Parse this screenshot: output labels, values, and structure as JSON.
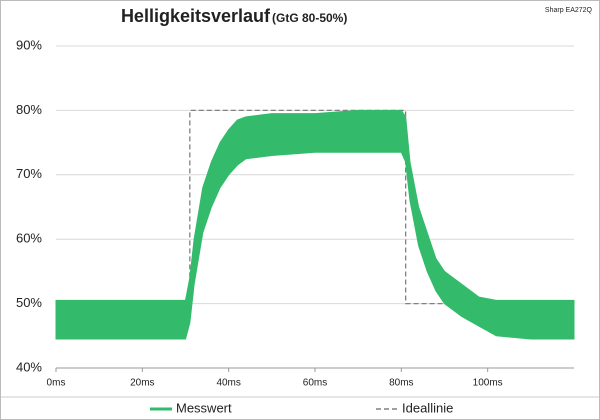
{
  "chart_data": {
    "type": "band",
    "title": "Helligkeitsverlauf",
    "subtitle": "(GtG 80-50%)",
    "annotation": "Sharp EA272Q",
    "xlim": [
      0,
      120
    ],
    "xticks": [
      {
        "value": 0,
        "label": "0ms"
      },
      {
        "value": 20,
        "label": "20ms"
      },
      {
        "value": 40,
        "label": "40ms"
      },
      {
        "value": 60,
        "label": "60ms"
      },
      {
        "value": 80,
        "label": "80ms"
      },
      {
        "value": 100,
        "label": "100ms"
      }
    ],
    "ylim": [
      40,
      90
    ],
    "yticks": [
      {
        "value": 40,
        "label": "40%"
      },
      {
        "value": 50,
        "label": "50%"
      },
      {
        "value": 60,
        "label": "60%"
      },
      {
        "value": 70,
        "label": "70%"
      },
      {
        "value": 80,
        "label": "80%"
      },
      {
        "value": 90,
        "label": "90%"
      }
    ],
    "grid": true,
    "legend": "bottom",
    "series": [
      {
        "name": "Messwert",
        "color": "#33bb6b",
        "x": [
          0,
          10,
          20,
          30,
          31,
          32,
          33,
          34,
          36,
          38,
          40,
          42,
          44,
          50,
          60,
          70,
          80,
          81,
          82,
          84,
          86,
          88,
          90,
          94,
          98,
          102,
          110,
          120
        ],
        "low": [
          44.5,
          44.5,
          44.5,
          44.5,
          47,
          53,
          57,
          61,
          65,
          68,
          70,
          71.5,
          72.5,
          73,
          73.5,
          73.5,
          73.5,
          72,
          66,
          59,
          55,
          52,
          50,
          48,
          46.5,
          45,
          44.5,
          44.5
        ],
        "high": [
          50.5,
          50.5,
          50.5,
          50.5,
          54,
          60,
          64,
          68,
          72,
          75,
          77,
          78.5,
          79,
          79.5,
          79.5,
          80,
          80,
          79,
          72,
          65,
          61,
          57,
          55,
          53,
          51,
          50.5,
          50.5,
          50.5
        ]
      },
      {
        "name": "Ideallinie",
        "color": "#808080",
        "dashed": true,
        "x": [
          0,
          31,
          31,
          81,
          81,
          120
        ],
        "values": [
          50,
          50,
          80,
          80,
          50,
          50
        ]
      }
    ]
  }
}
